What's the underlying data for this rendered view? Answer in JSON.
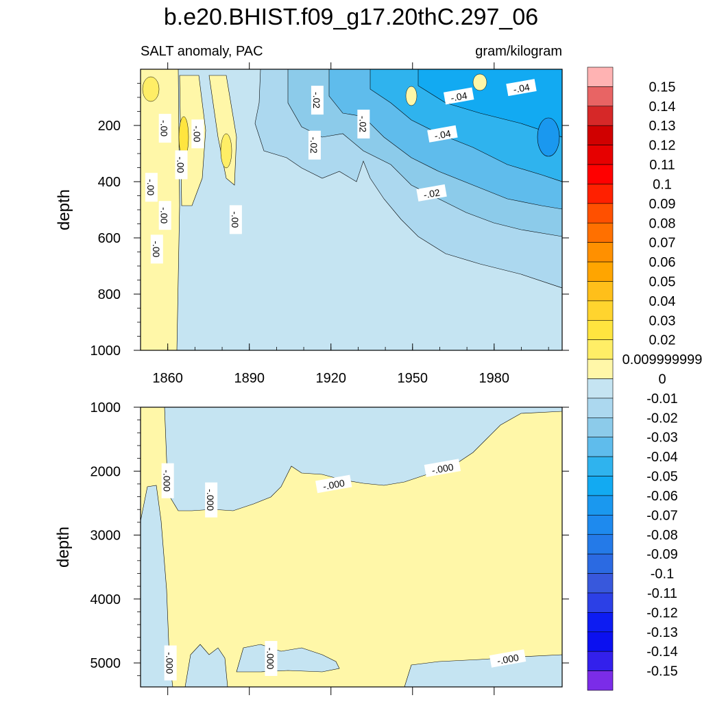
{
  "title": "b.e20.BHIST.f09_g17.20thC.297_06",
  "subtitle_left": "SALT anomaly, PAC",
  "subtitle_right": "gram/kilogram",
  "chart_data": [
    {
      "type": "heatmap",
      "panel": "upper",
      "ylabel": "depth",
      "x_ticks": [
        1860,
        1890,
        1920,
        1950,
        1980
      ],
      "y_ticks": [
        200,
        400,
        600,
        800,
        1000
      ],
      "xlim": [
        1850,
        2005
      ],
      "ylim": [
        1000,
        0
      ],
      "y_reversed": true,
      "grid": false,
      "contour_labels": [
        {
          "text": "-.02",
          "year": 1915,
          "depth": 110
        },
        {
          "text": "-.04",
          "year": 1967,
          "depth": 95
        },
        {
          "text": "-.04",
          "year": 1990,
          "depth": 65
        },
        {
          "text": "-.00",
          "year": 1859,
          "depth": 210
        },
        {
          "text": "-.00",
          "year": 1871,
          "depth": 230
        },
        {
          "text": "-.00",
          "year": 1865,
          "depth": 340
        },
        {
          "text": "-.00",
          "year": 1854,
          "depth": 420
        },
        {
          "text": "-.00",
          "year": 1859,
          "depth": 520
        },
        {
          "text": "-.00",
          "year": 1885,
          "depth": 535
        },
        {
          "text": "-.00",
          "year": 1856,
          "depth": 640
        },
        {
          "text": "-.02",
          "year": 1914,
          "depth": 270
        },
        {
          "text": "-.02",
          "year": 1932,
          "depth": 195
        },
        {
          "text": "-.04",
          "year": 1961,
          "depth": 230
        },
        {
          "text": "-.02",
          "year": 1957,
          "depth": 440
        }
      ]
    },
    {
      "type": "heatmap",
      "panel": "lower",
      "ylabel": "depth",
      "y_ticks": [
        1000,
        2000,
        3000,
        4000,
        5000
      ],
      "xlim": [
        1850,
        2005
      ],
      "ylim": [
        5375,
        1000
      ],
      "y_reversed": true,
      "grid": false,
      "contour_labels": [
        {
          "text": "-.000",
          "year": 1860,
          "depth": 2150
        },
        {
          "text": "-.000",
          "year": 1876,
          "depth": 2450
        },
        {
          "text": "-.000",
          "year": 1921,
          "depth": 2200
        },
        {
          "text": "-.000",
          "year": 1961,
          "depth": 1950
        },
        {
          "text": "-.000",
          "year": 1861,
          "depth": 5000
        },
        {
          "text": "-.000",
          "year": 1898,
          "depth": 4930
        },
        {
          "text": "-.000",
          "year": 1985,
          "depth": 4930
        }
      ]
    }
  ],
  "colorbar": {
    "labels": [
      "0.15",
      "0.14",
      "0.13",
      "0.12",
      "0.11",
      "0.1",
      "0.09",
      "0.08",
      "0.07",
      "0.06",
      "0.05",
      "0.04",
      "0.03",
      "0.02",
      "0.009999999",
      "0",
      "-0.01",
      "-0.02",
      "-0.03",
      "-0.04",
      "-0.05",
      "-0.06",
      "-0.07",
      "-0.08",
      "-0.09",
      "-0.1",
      "-0.11",
      "-0.12",
      "-0.13",
      "-0.14",
      "-0.15"
    ],
    "colors": [
      "#ffb3b3",
      "#e86464",
      "#d62828",
      "#d00000",
      "#e60000",
      "#ff0000",
      "#ff2000",
      "#ff5000",
      "#ff7000",
      "#ff9000",
      "#ffa500",
      "#ffbf1a",
      "#ffd42e",
      "#ffe53f",
      "#ffee66",
      "#fff7a8",
      "#c5e4f2",
      "#acd8ef",
      "#8ccbea",
      "#5fbcec",
      "#2fb3ee",
      "#12aaf2",
      "#1a98ef",
      "#1e8aee",
      "#247ae8",
      "#2b6ae2",
      "#3858dc",
      "#2c40e6",
      "#0d1cf2",
      "#0b10f0",
      "#3320ec",
      "#7b2ce8"
    ]
  },
  "colors": {
    "zero_pos": "#fff7a8",
    "zero_neg": "#c5e4f2",
    "neg01": "#acd8ef",
    "neg02": "#8ccbea",
    "neg03": "#5fbcec",
    "neg04": "#2fb3ee",
    "neg05": "#12aaf2",
    "pos02": "#ffe53f"
  }
}
